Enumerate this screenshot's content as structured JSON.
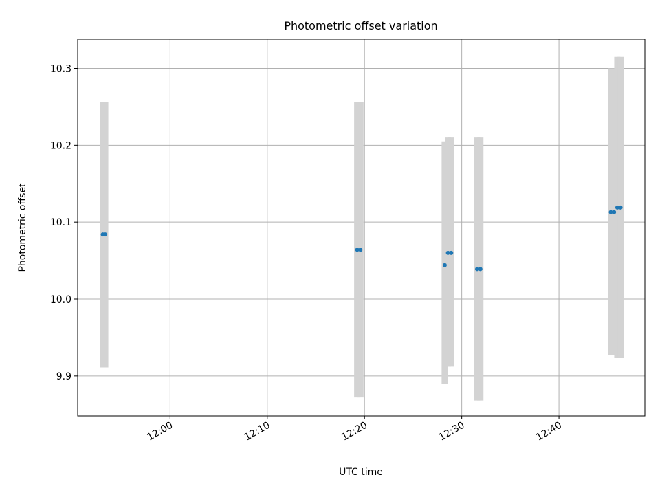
{
  "chart_data": {
    "type": "scatter",
    "title": "Photometric offset variation",
    "xlabel": "UTC time",
    "ylabel": "Photometric offset",
    "x_axis": {
      "kind": "time",
      "range": [
        "11:50:30",
        "12:48:50"
      ],
      "ticks": [
        "12:00",
        "12:10",
        "12:20",
        "12:30",
        "12:40"
      ]
    },
    "y_axis": {
      "range": [
        9.848,
        10.338
      ],
      "ticks": [
        {
          "value": 9.9,
          "label": "9.9"
        },
        {
          "value": 10.0,
          "label": "10.0"
        },
        {
          "value": 10.1,
          "label": "10.1"
        },
        {
          "value": 10.2,
          "label": "10.2"
        },
        {
          "value": 10.3,
          "label": "10.3"
        }
      ]
    },
    "grid": true,
    "legend": "none",
    "colors": {
      "point": "#1f77b4",
      "errorbar": "#d3d3d3",
      "grid": "#b0b0b0"
    },
    "points": [
      {
        "time": "11:53:05",
        "y": 10.084,
        "low": 9.911,
        "high": 10.256
      },
      {
        "time": "11:53:20",
        "y": 10.084,
        "low": 9.911,
        "high": 10.256
      },
      {
        "time": "12:19:15",
        "y": 10.064,
        "low": 9.872,
        "high": 10.256
      },
      {
        "time": "12:19:35",
        "y": 10.064,
        "low": 9.872,
        "high": 10.256
      },
      {
        "time": "12:28:15",
        "y": 10.044,
        "low": 9.89,
        "high": 10.205
      },
      {
        "time": "12:28:35",
        "y": 10.06,
        "low": 9.912,
        "high": 10.21
      },
      {
        "time": "12:28:55",
        "y": 10.06,
        "low": 9.912,
        "high": 10.21
      },
      {
        "time": "12:31:35",
        "y": 10.039,
        "low": 9.868,
        "high": 10.21
      },
      {
        "time": "12:31:55",
        "y": 10.039,
        "low": 9.868,
        "high": 10.21
      },
      {
        "time": "12:45:20",
        "y": 10.113,
        "low": 9.927,
        "high": 10.3
      },
      {
        "time": "12:45:40",
        "y": 10.113,
        "low": 9.927,
        "high": 10.3
      },
      {
        "time": "12:46:00",
        "y": 10.119,
        "low": 9.924,
        "high": 10.315
      },
      {
        "time": "12:46:20",
        "y": 10.119,
        "low": 9.924,
        "high": 10.315
      }
    ]
  }
}
